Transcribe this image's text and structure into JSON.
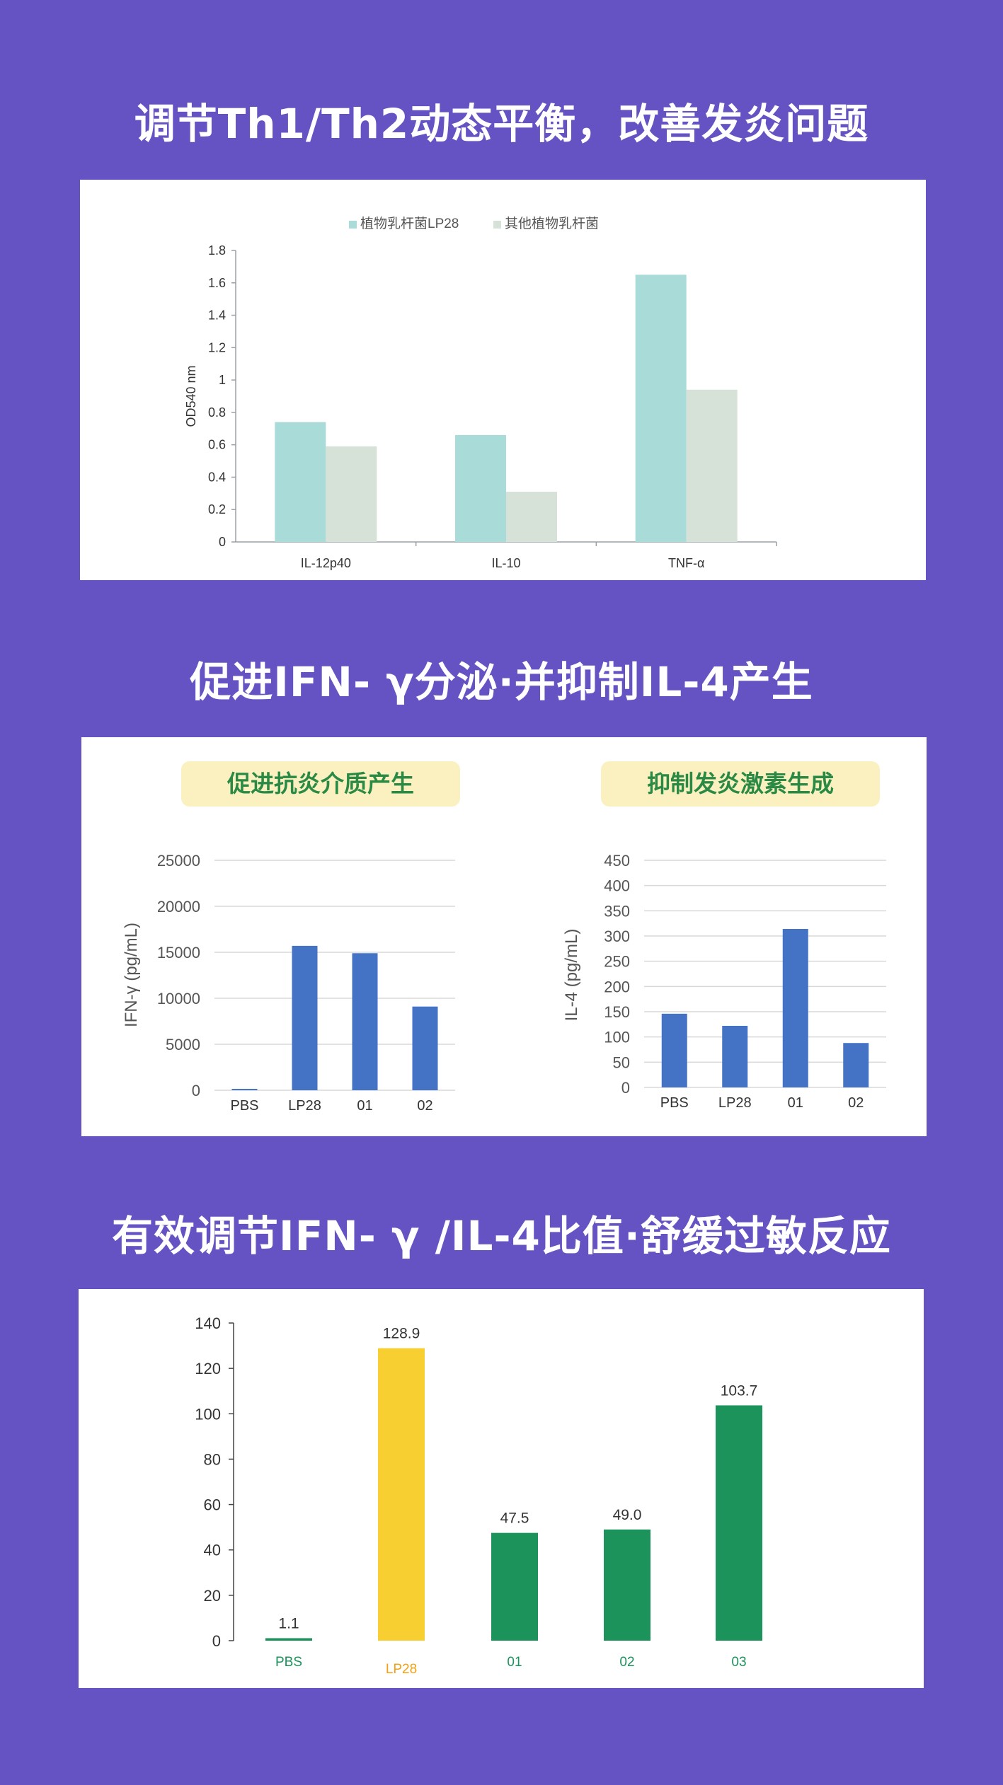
{
  "headings": {
    "h1": "调节Th1/Th2动态平衡，改善发炎问题",
    "h2": "促进IFN- γ分泌·并抑制IL-4产生",
    "h3": "有效调节IFN- γ /IL-4比值·舒缓过敏反应"
  },
  "colors": {
    "background": "#6553c3",
    "lp28_teal": "#a9dbd9",
    "other_grey": "#d6e1d8",
    "blue": "#4472c4",
    "yellow": "#f8cf31",
    "green": "#1c935a",
    "label_orange": "#f4a015",
    "subtitle_bg": "#fbf0bf",
    "subtitle_text": "#2a8a45"
  },
  "chart_data": [
    {
      "type": "bar",
      "categories": [
        "IL-12p40",
        "IL-10",
        "TNF-α"
      ],
      "series": [
        {
          "name": "植物乳杆菌LP28",
          "values": [
            0.74,
            0.66,
            1.65
          ]
        },
        {
          "name": "其他植物乳杆菌",
          "values": [
            0.59,
            0.31,
            0.94
          ]
        }
      ],
      "title": "",
      "xlabel": "",
      "ylabel": "OD540 nm",
      "ylim": [
        0,
        1.8
      ],
      "yticks": [
        "0",
        "0.2",
        "0.4",
        "0.6",
        "0.8",
        "1",
        "1.2",
        "1.4",
        "1.6",
        "1.8"
      ],
      "legend": "top",
      "grid": false
    },
    {
      "type": "bar",
      "categories": [
        "PBS",
        "LP28",
        "01",
        "02"
      ],
      "values": [
        150,
        15700,
        14900,
        9100
      ],
      "title": "促进抗炎介质产生",
      "xlabel": "",
      "ylabel": "IFN-γ (pg/mL)",
      "ylim": [
        0,
        25000
      ],
      "yticks": [
        "0",
        "5000",
        "10000",
        "15000",
        "20000",
        "25000"
      ],
      "grid": true
    },
    {
      "type": "bar",
      "categories": [
        "PBS",
        "LP28",
        "01",
        "02"
      ],
      "values": [
        146,
        122,
        314,
        88
      ],
      "title": "抑制发炎激素生成",
      "xlabel": "",
      "ylabel": "IL-4 (pg/mL)",
      "ylim": [
        0,
        450
      ],
      "yticks": [
        "0",
        "50",
        "100",
        "150",
        "200",
        "250",
        "300",
        "350",
        "400",
        "450"
      ],
      "grid": true
    },
    {
      "type": "bar",
      "categories": [
        "PBS",
        "LP28",
        "01",
        "02",
        "03"
      ],
      "values": [
        1.1,
        128.9,
        47.5,
        49.0,
        103.7
      ],
      "data_labels": [
        "1.1",
        "128.9",
        "47.5",
        "49.0",
        "103.7"
      ],
      "title": "",
      "xlabel": "",
      "ylabel": "",
      "ylim": [
        0,
        140
      ],
      "yticks": [
        "0",
        "20",
        "40",
        "60",
        "80",
        "100",
        "120",
        "140"
      ],
      "grid": false
    }
  ]
}
